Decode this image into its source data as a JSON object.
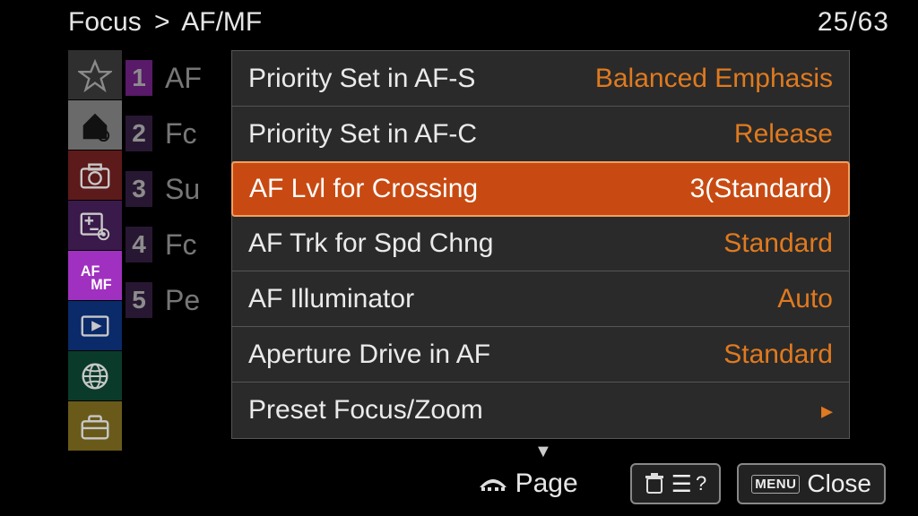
{
  "breadcrumb": {
    "root": "Focus",
    "sep": ">",
    "sub": "AF/MF"
  },
  "pager": {
    "current": "25",
    "total": "63"
  },
  "rail": [
    {
      "name": "star",
      "bg": "#2f2f2f",
      "fg": "#8a8a8a"
    },
    {
      "name": "home",
      "bg": "#6a6a6a",
      "fg": "#111111"
    },
    {
      "name": "camera",
      "bg": "#5c1a1a",
      "fg": "#c8c8c8"
    },
    {
      "name": "exposure",
      "bg": "#3a1a4a",
      "fg": "#c8c8c8"
    },
    {
      "name": "afmf",
      "bg": "#a030c0",
      "fg": "#ffffff"
    },
    {
      "name": "playback",
      "bg": "#0a2a6a",
      "fg": "#c8c8c8"
    },
    {
      "name": "globe",
      "bg": "#0a3a2a",
      "fg": "#c8c8c8"
    },
    {
      "name": "toolbox",
      "bg": "#6a5a1a",
      "fg": "#c8c8c8"
    }
  ],
  "sub": [
    {
      "n": "1",
      "label": "AF",
      "active": true
    },
    {
      "n": "2",
      "label": "Fc",
      "active": false
    },
    {
      "n": "3",
      "label": "Su",
      "active": false
    },
    {
      "n": "4",
      "label": "Fc",
      "active": false
    },
    {
      "n": "5",
      "label": "Pe",
      "active": false
    }
  ],
  "settings": [
    {
      "label": "Priority Set in AF-S",
      "value": "Balanced Emphasis",
      "selected": false,
      "arrow": false
    },
    {
      "label": "Priority Set in AF-C",
      "value": "Release",
      "selected": false,
      "arrow": false
    },
    {
      "label": "AF Lvl for Crossing",
      "value": "3(Standard)",
      "selected": true,
      "arrow": false
    },
    {
      "label": "AF Trk for Spd Chng",
      "value": "Standard",
      "selected": false,
      "arrow": false
    },
    {
      "label": "AF Illuminator",
      "value": "Auto",
      "selected": false,
      "arrow": false
    },
    {
      "label": "Aperture Drive in AF",
      "value": "Standard",
      "selected": false,
      "arrow": false
    },
    {
      "label": "Preset Focus/Zoom",
      "value": "",
      "selected": false,
      "arrow": true
    }
  ],
  "bottom": {
    "page_label": "Page",
    "help_q": "?",
    "menu_tag": "MENU",
    "close_label": "Close"
  },
  "colors": {
    "accent": "#e07a1f",
    "selected_bg": "#c84a12",
    "selected_border": "#f0a060",
    "panel_bg": "#2a2a2a",
    "divider": "#555555",
    "text": "#eaeaea"
  }
}
